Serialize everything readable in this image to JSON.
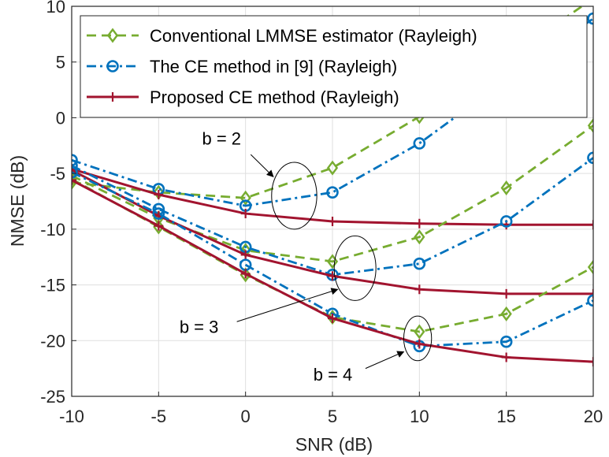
{
  "chart_data": {
    "type": "line",
    "xlabel": "SNR (dB)",
    "ylabel": "NMSE (dB)",
    "xlim": [
      -10,
      20
    ],
    "ylim": [
      -25,
      10
    ],
    "xticks": [
      -10,
      -5,
      0,
      5,
      10,
      15,
      20
    ],
    "yticks": [
      -25,
      -20,
      -15,
      -10,
      -5,
      0,
      5,
      10
    ],
    "grid": true,
    "legend_position": "top-right",
    "x": [
      -10,
      -5,
      0,
      5,
      10,
      15,
      20
    ],
    "series": [
      {
        "name": "Conventional LMMSE estimator (Rayleigh)",
        "group": "b = 2",
        "color": "#77ac30",
        "style": "dashed",
        "marker": "diamond",
        "values": [
          -5.8,
          -6.7,
          -7.2,
          -4.5,
          0.1,
          5.3,
          10.7
        ]
      },
      {
        "name": "The CE method in [9] (Rayleigh)",
        "group": "b = 2",
        "color": "#0072bd",
        "style": "dashdot",
        "marker": "circle",
        "values": [
          -3.8,
          -6.4,
          -7.9,
          -6.7,
          -2.3,
          3.4,
          8.9
        ]
      },
      {
        "name": "Proposed CE method (Rayleigh)",
        "group": "b = 2",
        "color": "#a2142f",
        "style": "solid",
        "marker": "plus",
        "values": [
          -4.6,
          -6.9,
          -8.6,
          -9.3,
          -9.5,
          -9.6,
          -9.6
        ]
      },
      {
        "name": "",
        "group": "b = 3",
        "color": "#77ac30",
        "style": "dashed",
        "marker": "diamond",
        "values": [
          -5.2,
          -9.0,
          -11.9,
          -12.9,
          -10.7,
          -6.3,
          -0.7
        ]
      },
      {
        "name": "",
        "group": "b = 3",
        "color": "#0072bd",
        "style": "dashdot",
        "marker": "circle",
        "values": [
          -4.3,
          -8.2,
          -11.6,
          -14.1,
          -13.1,
          -9.3,
          -3.6
        ]
      },
      {
        "name": "",
        "group": "b = 3",
        "color": "#a2142f",
        "style": "solid",
        "marker": "plus",
        "values": [
          -4.7,
          -8.8,
          -12.3,
          -14.2,
          -15.4,
          -15.8,
          -15.8
        ]
      },
      {
        "name": "",
        "group": "b = 4",
        "color": "#77ac30",
        "style": "dashed",
        "marker": "diamond",
        "values": [
          -5.5,
          -9.8,
          -14.1,
          -17.9,
          -19.2,
          -17.6,
          -13.4
        ]
      },
      {
        "name": "",
        "group": "b = 4",
        "color": "#0072bd",
        "style": "dashdot",
        "marker": "circle",
        "values": [
          -4.9,
          -8.6,
          -13.2,
          -17.6,
          -20.5,
          -20.1,
          -16.4
        ]
      },
      {
        "name": "",
        "group": "b = 4",
        "color": "#a2142f",
        "style": "solid",
        "marker": "plus",
        "values": [
          -5.6,
          -9.7,
          -14.0,
          -18.0,
          -20.3,
          -21.5,
          -21.9
        ]
      }
    ],
    "annotations": [
      {
        "text": "b = 2",
        "ellipse_center": [
          2.8,
          -7.0
        ],
        "ellipse_radii": [
          1.3,
          3.0
        ],
        "label_at": [
          -2.5,
          -2.4
        ],
        "arrow_from": [
          0.3,
          -3.3
        ],
        "arrow_to": [
          1.6,
          -5.3
        ]
      },
      {
        "text": "b = 3",
        "ellipse_center": [
          6.3,
          -13.5
        ],
        "ellipse_radii": [
          1.2,
          2.9
        ],
        "label_at": [
          -3.8,
          -19.3
        ],
        "arrow_from": [
          -0.5,
          -18.3
        ],
        "arrow_to": [
          5.3,
          -15.4
        ]
      },
      {
        "text": "b = 4",
        "ellipse_center": [
          9.9,
          -19.8
        ],
        "ellipse_radii": [
          0.8,
          2.0
        ],
        "label_at": [
          3.9,
          -23.6
        ],
        "arrow_from": [
          6.9,
          -22.5
        ],
        "arrow_to": [
          9.1,
          -21.0
        ]
      }
    ]
  }
}
